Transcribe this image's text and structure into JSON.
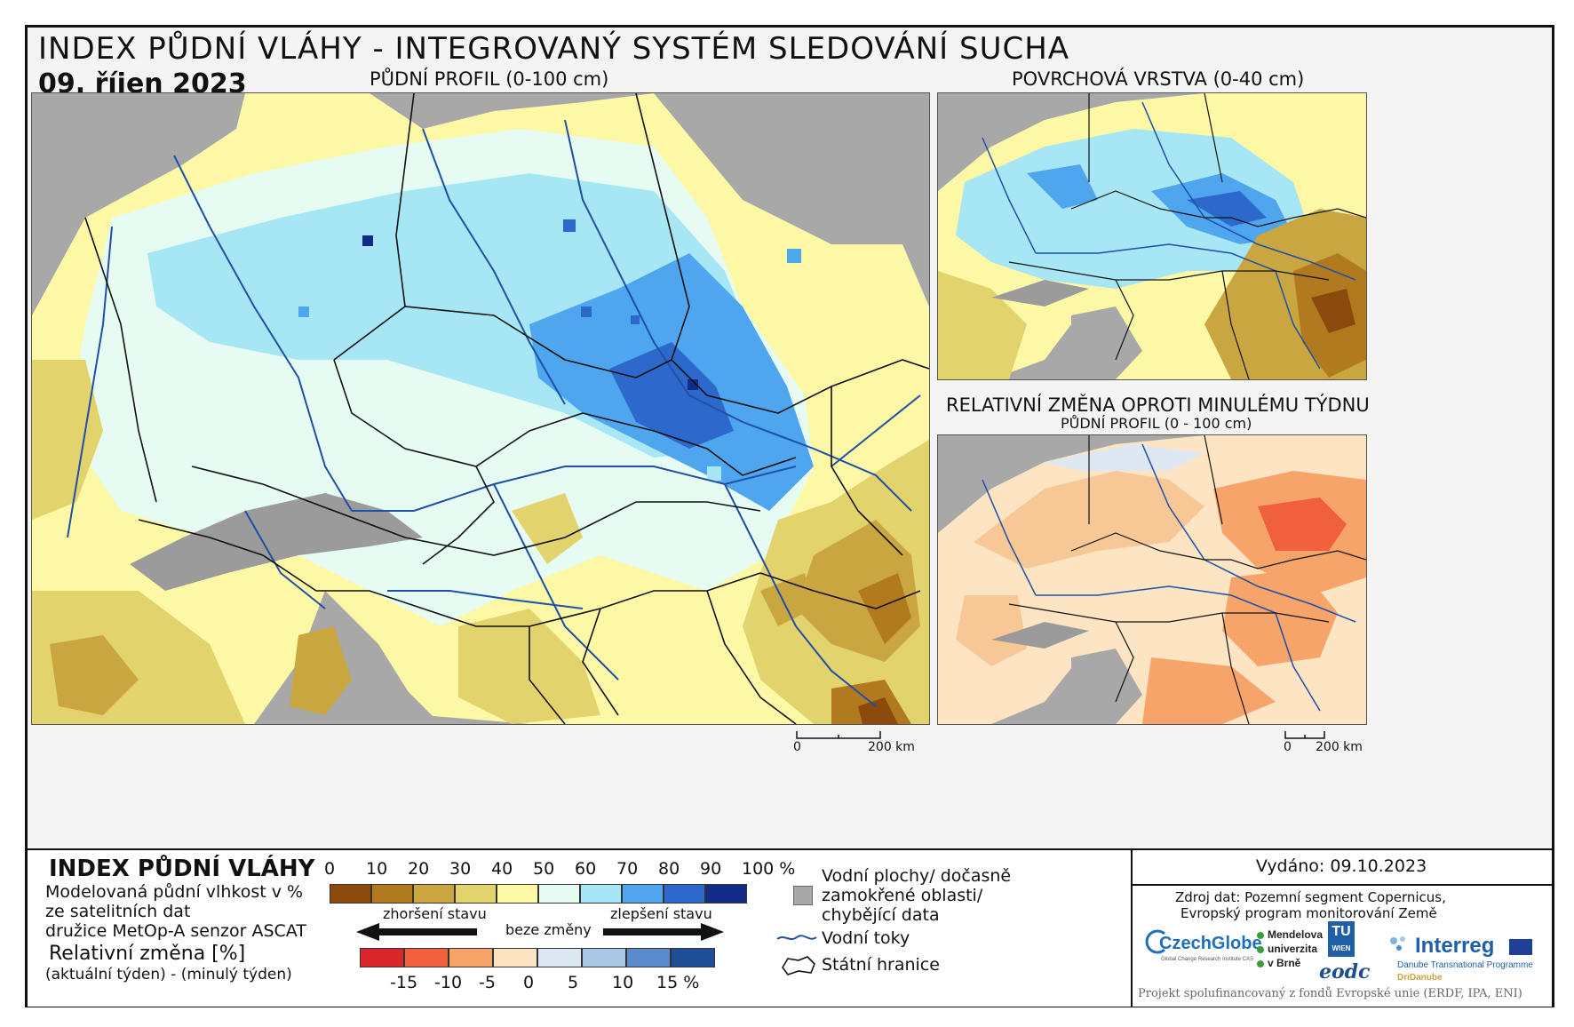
{
  "header": {
    "title": "INDEX PŮDNÍ VLÁHY - INTEGROVANÝ SYSTÉM SLEDOVÁNÍ SUCHA",
    "date": "09. říjen 2023"
  },
  "panels": {
    "main_title": "PŮDNÍ PROFIL (0-100 cm)",
    "surface_title": "POVRCHOVÁ VRSTVA (0-40 cm)",
    "change_title": "RELATIVNÍ ZMĚNA OPROTI MINULÉMU TÝDNU",
    "change_subtitle": "PŮDNÍ PROFIL (0 - 100 cm)"
  },
  "scalebar": {
    "main_zero": "0",
    "main_label": "200 km",
    "small_zero": "0",
    "small_label": "200 km"
  },
  "legend": {
    "title": "INDEX PŮDNÍ VLÁHY",
    "desc_line1": "Modelovaná půdní vlhkost v %",
    "desc_line2": "ze satelitních dat",
    "desc_line3": "družice MetOp-A senzor ASCAT",
    "change_title": "Relativní změna [%]",
    "change_desc": "(aktuální týden) - (minulý týden)",
    "moisture_ticks": [
      "0",
      "10",
      "20",
      "30",
      "40",
      "50",
      "60",
      "70",
      "80",
      "90",
      "100 %"
    ],
    "moisture_colors": [
      "#8b4a0c",
      "#b27a1f",
      "#c9a640",
      "#e3d36c",
      "#fdf8a6",
      "#e6fbf2",
      "#a7e6f4",
      "#4ea6ef",
      "#2d69cc",
      "#112b87"
    ],
    "arrow_worse": "zhoršení stavu",
    "arrow_none": "beze změny",
    "arrow_better": "zlepšení stavu",
    "change_ticks": [
      "-15",
      "-10",
      "-5",
      "0",
      "5",
      "10",
      "15 %"
    ],
    "change_colors": [
      "#d9262b",
      "#f0603d",
      "#f7a46b",
      "#fde5c4",
      "#dde8f2",
      "#a9c6e5",
      "#5a8ccc",
      "#1f4e96"
    ],
    "water_label_1": "Vodní plochy/ dočasně",
    "water_label_2": "zamokřené oblasti/",
    "water_label_3": "chybějící data",
    "rivers_label": "Vodní toky",
    "borders_label": "Státní hranice"
  },
  "info": {
    "issued": "Vydáno: 09.10.2023",
    "source_1": "Zdroj dat: Pozemní segment Copernicus,",
    "source_2": "Evropský program monitorování Země",
    "logo_czechglobe": "CzechGlobe",
    "logo_czechglobe_sub": "Global Change Research Institute CAS",
    "logo_mendel_1": "Mendelova",
    "logo_mendel_2": "univerzita",
    "logo_mendel_3": "v Brně",
    "logo_tu": "TU",
    "logo_tu_sub": "WIEN",
    "logo_eodc": "eodc",
    "logo_interreg": "Interreg",
    "logo_interreg_sub1": "Danube Transnational Programme",
    "logo_interreg_sub2": "DriDanube",
    "footer": "Projekt spolufinancovaný z fondů Evropské unie (ERDF, IPA, ENI)"
  },
  "colors": {
    "sea": "#a8a8a8",
    "border": "#111111",
    "river": "#1f4fa6"
  }
}
